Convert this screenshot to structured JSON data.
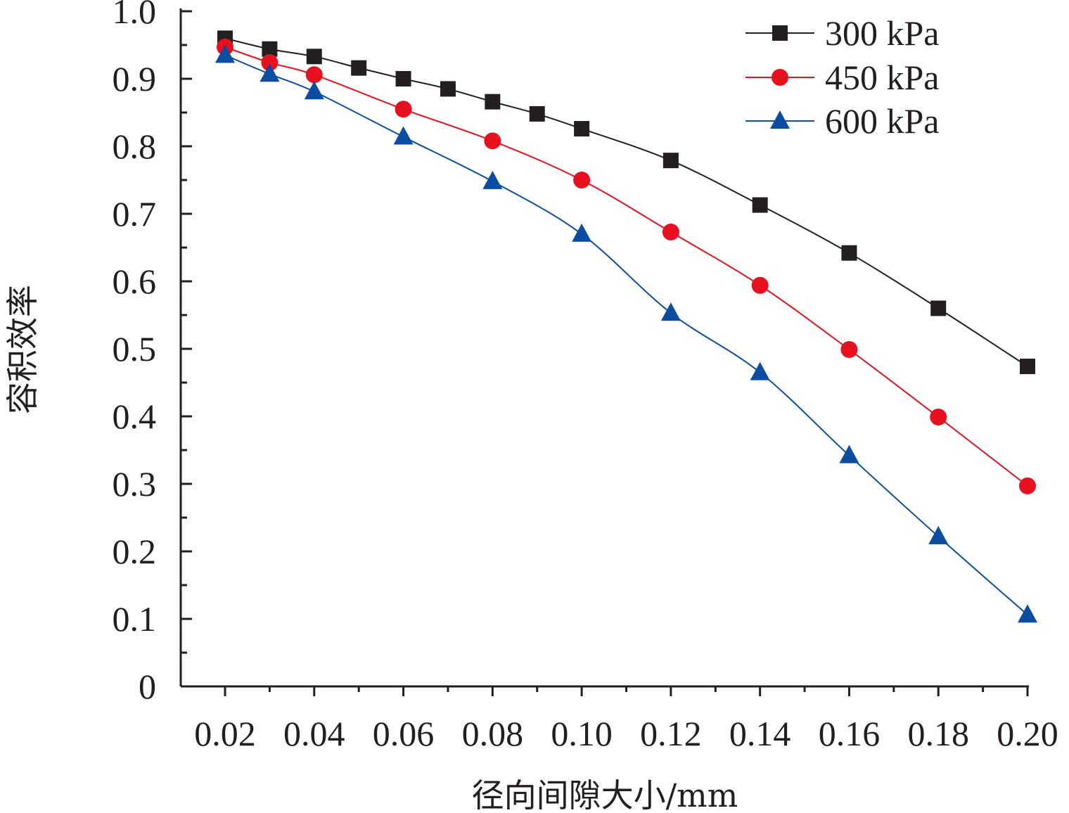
{
  "chart_data": {
    "type": "line",
    "xlabel": "径向间隙大小/mm",
    "ylabel": "容积效率",
    "xlim": [
      0.02,
      0.2
    ],
    "ylim": [
      0,
      1.0
    ],
    "x_ticks": [
      "0.02",
      "0.04",
      "0.06",
      "0.08",
      "0.10",
      "0.12",
      "0.14",
      "0.16",
      "0.18",
      "0.20"
    ],
    "y_ticks": [
      "0",
      "0.1",
      "0.2",
      "0.3",
      "0.4",
      "0.5",
      "0.6",
      "0.7",
      "0.8",
      "0.9",
      "1.0"
    ],
    "grid": false,
    "legend_position": "top-right",
    "series": [
      {
        "name": "300 kPa",
        "color": "#231f20",
        "marker": "square",
        "x": [
          0.02,
          0.03,
          0.04,
          0.05,
          0.06,
          0.07,
          0.08,
          0.09,
          0.1,
          0.12,
          0.14,
          0.16,
          0.18,
          0.2
        ],
        "y": [
          0.96,
          0.944,
          0.933,
          0.916,
          0.9,
          0.885,
          0.866,
          0.848,
          0.826,
          0.779,
          0.713,
          0.642,
          0.56,
          0.474
        ]
      },
      {
        "name": "450 kPa",
        "color": "#e8101f",
        "marker": "circle",
        "x": [
          0.02,
          0.03,
          0.04,
          0.06,
          0.08,
          0.1,
          0.12,
          0.14,
          0.16,
          0.18,
          0.2
        ],
        "y": [
          0.947,
          0.924,
          0.906,
          0.855,
          0.808,
          0.75,
          0.673,
          0.594,
          0.499,
          0.399,
          0.297
        ]
      },
      {
        "name": "600 kPa",
        "color": "#0b4da2",
        "marker": "triangle",
        "x": [
          0.02,
          0.03,
          0.04,
          0.06,
          0.08,
          0.1,
          0.12,
          0.14,
          0.16,
          0.18,
          0.2
        ],
        "y": [
          0.935,
          0.907,
          0.881,
          0.814,
          0.748,
          0.67,
          0.553,
          0.465,
          0.342,
          0.222,
          0.106
        ]
      }
    ]
  }
}
